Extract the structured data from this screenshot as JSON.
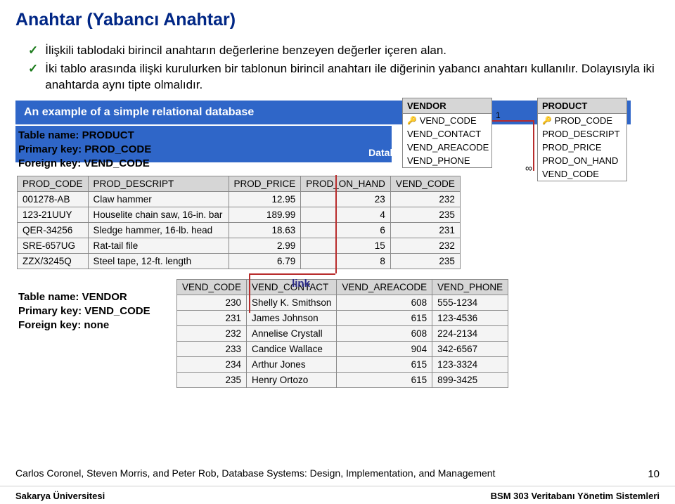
{
  "title": "Anahtar (Yabancı Anahtar)",
  "bullets": [
    "İlişkili tablodaki birincil anahtarın değerlerine benzeyen değerler içeren alan.",
    "İki tablo arasında ilişki kurulurken bir tablonun birincil anahtarı ile diğerinin yabancı anahtarı kullanılır. Dolayısıyla iki anahtarda aynı tipte olmalıdır."
  ],
  "caption": "An example of a simple relational database",
  "datab": "Datab",
  "product_meta": {
    "line1": "Table name: PRODUCT",
    "line2": "Primary key: PROD_CODE",
    "line3": "Foreign key: VEND_CODE"
  },
  "product_table": {
    "columns": [
      "PROD_CODE",
      "PROD_DESCRIPT",
      "PROD_PRICE",
      "PROD_ON_HAND",
      "VEND_CODE"
    ],
    "rows": [
      [
        "001278-AB",
        "Claw hammer",
        "12.95",
        "23",
        "232"
      ],
      [
        "123-21UUY",
        "Houselite chain saw, 16-in. bar",
        "189.99",
        "4",
        "235"
      ],
      [
        "QER-34256",
        "Sledge hammer, 16-lb. head",
        "18.63",
        "6",
        "231"
      ],
      [
        "SRE-657UG",
        "Rat-tail file",
        "2.99",
        "15",
        "232"
      ],
      [
        "ZZX/3245Q",
        "Steel tape, 12-ft. length",
        "6.79",
        "8",
        "235"
      ]
    ]
  },
  "link_label": "link",
  "vendor_meta": {
    "line1": "Table name: VENDOR",
    "line2": "Primary key: VEND_CODE",
    "line3": "Foreign key: none"
  },
  "vendor_table": {
    "columns": [
      "VEND_CODE",
      "VEND_CONTACT",
      "VEND_AREACODE",
      "VEND_PHONE"
    ],
    "rows": [
      [
        "230",
        "Shelly K. Smithson",
        "608",
        "555-1234"
      ],
      [
        "231",
        "James Johnson",
        "615",
        "123-4536"
      ],
      [
        "232",
        "Annelise Crystall",
        "608",
        "224-2134"
      ],
      [
        "233",
        "Candice Wallace",
        "904",
        "342-6567"
      ],
      [
        "234",
        "Arthur Jones",
        "615",
        "123-3324"
      ],
      [
        "235",
        "Henry Ortozo",
        "615",
        "899-3425"
      ]
    ]
  },
  "entity_vendor": {
    "name": "VENDOR",
    "pk": "VEND_CODE",
    "fields": [
      "VEND_CONTACT",
      "VEND_AREACODE",
      "VEND_PHONE"
    ]
  },
  "entity_product": {
    "name": "PRODUCT",
    "pk": "PROD_CODE",
    "fields": [
      "PROD_DESCRIPT",
      "PROD_PRICE",
      "PROD_ON_HAND",
      "VEND_CODE"
    ]
  },
  "rel_one": "1",
  "rel_many": "∞",
  "citation": "Carlos Coronel, Steven Morris, and Peter Rob, Database Systems: Design, Implementation, and Management",
  "page_num": "10",
  "footer_left": "Sakarya Üniversitesi",
  "footer_right": "BSM 303 Veritabanı Yönetim Sistemleri"
}
